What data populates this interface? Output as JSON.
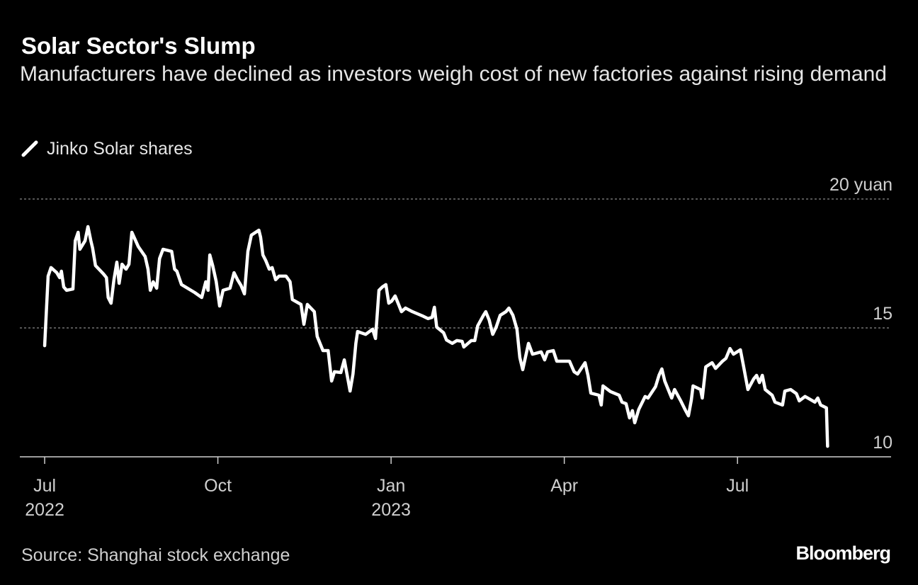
{
  "chart_data": {
    "type": "line",
    "title": "Solar Sector's Slump",
    "subtitle": "Manufacturers have declined as investors weigh cost of new factories against rising demand",
    "source": "Source: Shanghai stock exchange",
    "brand": "Bloomberg",
    "xlim": [
      -0.43,
      14.66
    ],
    "xticks": [
      {
        "value": 0,
        "label": "Jul",
        "year": "2022"
      },
      {
        "value": 3,
        "label": "Oct"
      },
      {
        "value": 6,
        "label": "Jan",
        "year": "2023"
      },
      {
        "value": 9,
        "label": "Apr"
      },
      {
        "value": 12,
        "label": "Jul"
      }
    ],
    "ylim": [
      10,
      20
    ],
    "yticks": [
      10,
      15,
      {
        "value": 20,
        "label": "20 yuan"
      }
    ],
    "grid": true,
    "series": [
      {
        "name": "Jinko Solar shares",
        "color": "#ffffff",
        "x": [
          0.0,
          0.06,
          0.11,
          0.21,
          0.26,
          0.29,
          0.33,
          0.38,
          0.49,
          0.53,
          0.58,
          0.61,
          0.7,
          0.75,
          0.8,
          0.83,
          0.88,
          1.02,
          1.07,
          1.1,
          1.15,
          1.2,
          1.25,
          1.29,
          1.34,
          1.41,
          1.46,
          1.51,
          1.62,
          1.74,
          1.79,
          1.83,
          1.88,
          1.94,
          1.99,
          2.05,
          2.2,
          2.25,
          2.29,
          2.37,
          2.6,
          2.72,
          2.79,
          2.83,
          2.86,
          2.91,
          2.97,
          3.03,
          3.09,
          3.21,
          3.28,
          3.34,
          3.4,
          3.46,
          3.52,
          3.58,
          3.71,
          3.74,
          3.78,
          3.83,
          3.89,
          3.94,
          4.0,
          4.06,
          4.18,
          4.25,
          4.29,
          4.44,
          4.49,
          4.55,
          4.67,
          4.72,
          4.82,
          4.91,
          4.97,
          5.02,
          5.13,
          5.19,
          5.24,
          5.29,
          5.34,
          5.39,
          5.42,
          5.56,
          5.68,
          5.73,
          5.79,
          5.85,
          5.91,
          5.96,
          6.01,
          6.07,
          6.13,
          6.18,
          6.25,
          6.37,
          6.54,
          6.64,
          6.71,
          6.75,
          6.79,
          6.91,
          6.96,
          7.06,
          7.14,
          7.23,
          7.26,
          7.39,
          7.45,
          7.5,
          7.6,
          7.64,
          7.7,
          7.76,
          7.82,
          7.89,
          7.99,
          8.04,
          8.11,
          8.18,
          8.23,
          8.28,
          8.38,
          8.45,
          8.6,
          8.66,
          8.71,
          8.81,
          8.87,
          9.09,
          9.17,
          9.23,
          9.36,
          9.41,
          9.46,
          9.6,
          9.64,
          9.67,
          9.8,
          9.95,
          10.0,
          10.07,
          10.13,
          10.18,
          10.22,
          10.29,
          10.4,
          10.45,
          10.58,
          10.64,
          10.69,
          10.74,
          10.86,
          10.91,
          11.01,
          11.09,
          11.15,
          11.2,
          11.23,
          11.36,
          11.39,
          11.42,
          11.45,
          11.56,
          11.62,
          11.74,
          11.8,
          11.87,
          11.93,
          12.05,
          12.1,
          12.18,
          12.28,
          12.33,
          12.38,
          12.43,
          12.48,
          12.6,
          12.65,
          12.78,
          12.82,
          12.92,
          13.02,
          13.07,
          13.17,
          13.28,
          13.34,
          13.39,
          13.44,
          13.54,
          13.56
        ],
        "values": [
          14.31,
          17.01,
          17.34,
          17.14,
          16.95,
          17.2,
          16.59,
          16.46,
          16.51,
          18.38,
          18.71,
          18.05,
          18.38,
          18.93,
          18.38,
          18.1,
          17.42,
          17.09,
          16.95,
          16.18,
          15.96,
          16.87,
          17.55,
          16.73,
          17.47,
          17.28,
          17.47,
          18.71,
          18.16,
          17.77,
          17.28,
          16.46,
          16.79,
          16.54,
          17.69,
          18.05,
          17.97,
          17.28,
          17.2,
          16.68,
          16.37,
          16.18,
          16.79,
          16.46,
          17.83,
          17.42,
          16.81,
          15.85,
          16.46,
          16.54,
          17.14,
          16.87,
          16.65,
          16.32,
          17.97,
          18.6,
          18.79,
          18.52,
          17.83,
          17.61,
          17.28,
          17.34,
          16.87,
          17.01,
          17.01,
          16.79,
          16.1,
          15.91,
          15.14,
          15.91,
          15.63,
          14.67,
          14.12,
          14.12,
          12.94,
          13.3,
          13.27,
          13.76,
          13.16,
          12.55,
          13.21,
          14.4,
          14.86,
          14.75,
          14.95,
          14.59,
          16.46,
          16.59,
          16.68,
          15.96,
          16.04,
          16.24,
          15.91,
          15.63,
          15.77,
          15.63,
          15.47,
          15.36,
          15.41,
          15.8,
          15.03,
          14.81,
          14.53,
          14.4,
          14.51,
          14.48,
          14.26,
          14.51,
          14.51,
          15.08,
          15.49,
          15.63,
          15.3,
          14.75,
          15.03,
          15.49,
          15.63,
          15.77,
          15.49,
          14.95,
          13.85,
          13.38,
          14.4,
          13.98,
          14.07,
          13.76,
          14.07,
          14.12,
          13.71,
          13.71,
          13.3,
          13.21,
          13.65,
          13.16,
          12.47,
          12.39,
          12.01,
          12.75,
          12.53,
          12.39,
          12.12,
          12.06,
          11.51,
          11.79,
          11.32,
          11.84,
          12.34,
          12.28,
          12.72,
          13.16,
          13.41,
          12.94,
          12.28,
          12.61,
          12.2,
          11.84,
          11.59,
          12.2,
          12.75,
          12.61,
          12.28,
          12.88,
          13.49,
          13.65,
          13.43,
          13.71,
          13.82,
          14.2,
          13.98,
          14.15,
          13.57,
          12.61,
          13.02,
          13.16,
          12.88,
          13.16,
          12.61,
          12.39,
          12.12,
          12.01,
          12.55,
          12.61,
          12.45,
          12.17,
          12.34,
          12.2,
          12.12,
          12.28,
          12.01,
          11.9,
          10.41
        ]
      }
    ]
  }
}
